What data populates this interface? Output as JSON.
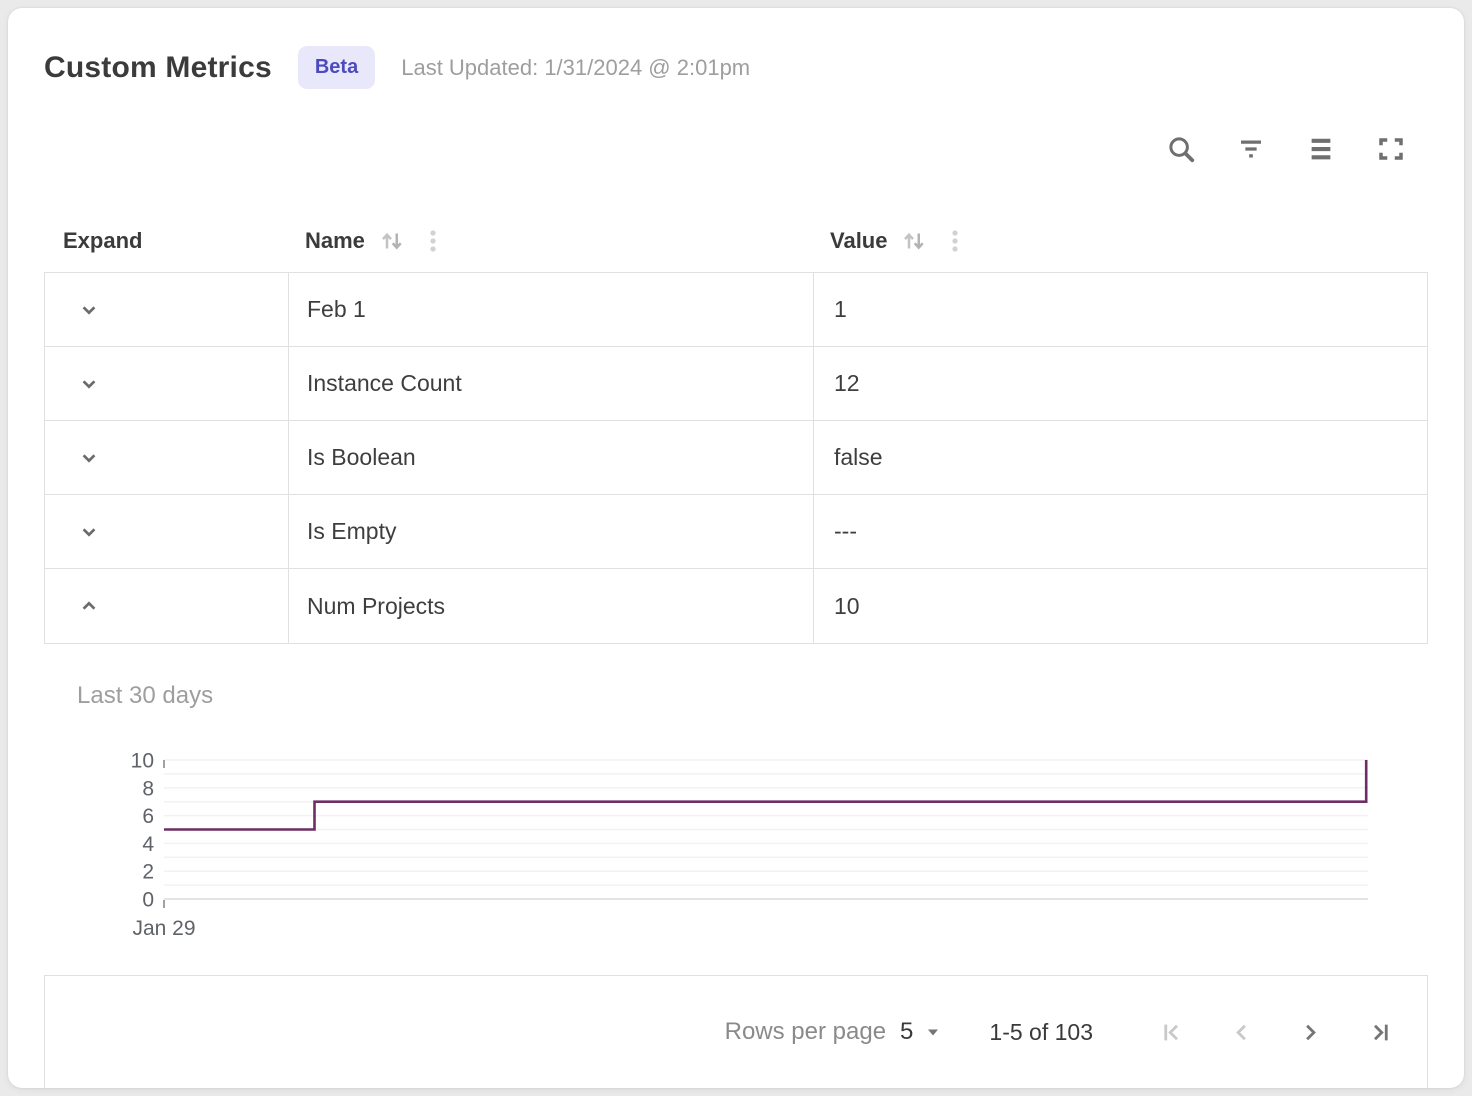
{
  "page": {
    "background": "#eaeaea",
    "card_background": "#ffffff"
  },
  "header": {
    "title": "Custom Metrics",
    "badge_label": "Beta",
    "badge_bg": "#e9e8fb",
    "badge_text_color": "#4c4bbd",
    "last_updated": "Last Updated: 1/31/2024 @ 2:01pm"
  },
  "toolbar": {
    "icons": [
      "search-icon",
      "filter-icon",
      "density-icon",
      "fullscreen-icon"
    ]
  },
  "table": {
    "columns": [
      {
        "label": "Expand",
        "sortable": false
      },
      {
        "label": "Name",
        "sortable": true
      },
      {
        "label": "Value",
        "sortable": true
      }
    ],
    "rows": [
      {
        "name": "Feb 1",
        "value": "1",
        "expanded": false
      },
      {
        "name": "Instance Count",
        "value": "12",
        "expanded": false
      },
      {
        "name": "Is Boolean",
        "value": "false",
        "expanded": false
      },
      {
        "name": "Is Empty",
        "value": "---",
        "expanded": false
      },
      {
        "name": "Num Projects",
        "value": "10",
        "expanded": true
      }
    ]
  },
  "chart_data": {
    "type": "line",
    "variant": "step",
    "title": "Last 30 days",
    "series": [
      {
        "name": "Num Projects",
        "points": [
          {
            "x_pct": 0,
            "y": 5
          },
          {
            "x_pct": 12.5,
            "y": 5
          },
          {
            "x_pct": 12.5,
            "y": 7
          },
          {
            "x_pct": 99.85,
            "y": 7
          },
          {
            "x_pct": 99.85,
            "y": 10
          }
        ]
      }
    ],
    "ylim": [
      0,
      10
    ],
    "y_ticks": [
      0,
      2,
      4,
      6,
      8,
      10
    ],
    "x_tick_labels": [
      "Jan 29"
    ],
    "grid": true,
    "line_color": "#6e2d64",
    "gridline_color": "#f2f2f2",
    "axis_line_color": "#e4e4e4",
    "axis_label_color": "#5f6368"
  },
  "pagination": {
    "rows_per_page_label": "Rows per page",
    "rows_per_page_value": "5",
    "range_label": "1-5 of 103",
    "controls": [
      {
        "name": "first-page",
        "enabled": false
      },
      {
        "name": "previous-page",
        "enabled": false
      },
      {
        "name": "next-page",
        "enabled": true
      },
      {
        "name": "last-page",
        "enabled": true
      }
    ]
  }
}
